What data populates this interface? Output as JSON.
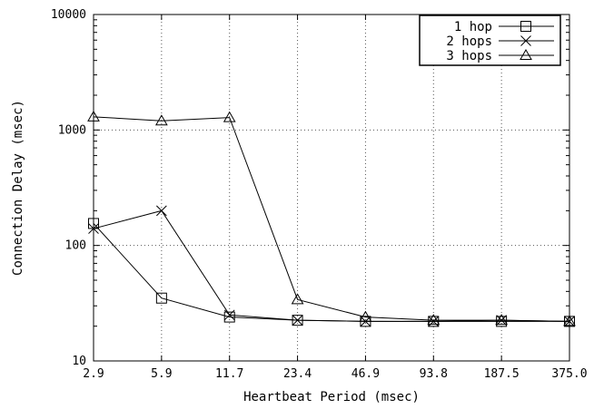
{
  "chart_data": {
    "type": "line",
    "title": "",
    "xlabel": "Heartbeat Period (msec)",
    "ylabel": "Connection Delay (msec)",
    "categories": [
      "2.9",
      "5.9",
      "11.7",
      "23.4",
      "46.9",
      "93.8",
      "187.5",
      "375.0"
    ],
    "yscale": "log",
    "ylim": [
      10,
      10000
    ],
    "yticks": [
      10,
      100,
      1000,
      10000
    ],
    "ytick_labels": [
      "10",
      "100",
      "1000",
      "10000"
    ],
    "grid": true,
    "legend_position": "top-right",
    "series": [
      {
        "name": "1 hop",
        "marker": "square",
        "values": [
          155,
          35,
          24,
          22.5,
          22,
          22,
          22,
          22
        ]
      },
      {
        "name": "2 hops",
        "marker": "x",
        "values": [
          140,
          200,
          25,
          22.5,
          22,
          22,
          22.5,
          22
        ]
      },
      {
        "name": "3 hops",
        "marker": "triangle",
        "values": [
          1300,
          1200,
          1280,
          34,
          24,
          22.5,
          22.5,
          22
        ]
      }
    ]
  }
}
